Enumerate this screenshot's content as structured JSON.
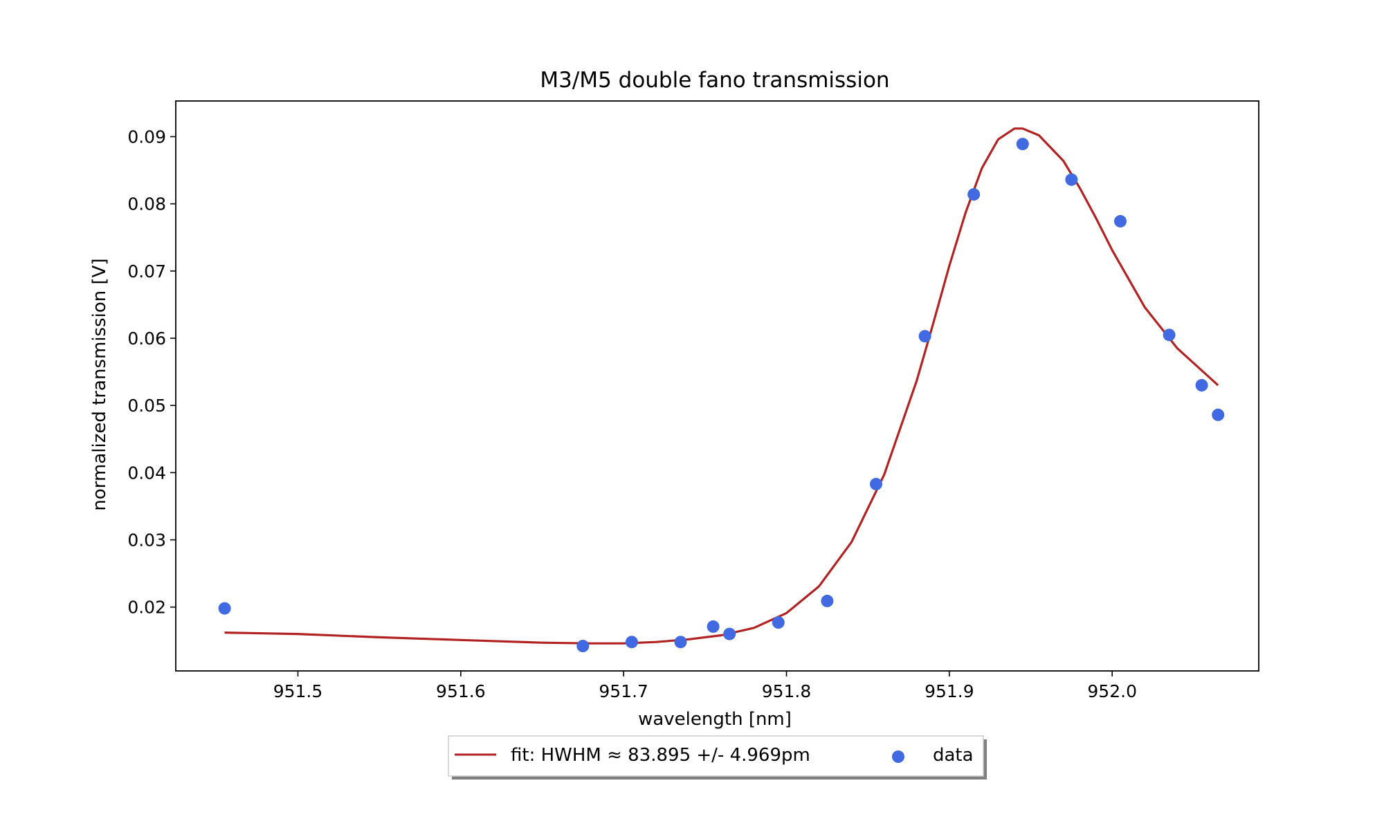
{
  "chart_data": {
    "type": "scatter",
    "title": "M3/M5 double fano transmission",
    "xlabel": "wavelength [nm]",
    "ylabel": "normalized transmission [V]",
    "xlim": [
      951.425,
      952.09
    ],
    "ylim": [
      0.0105,
      0.0953
    ],
    "x_ticks": [
      951.5,
      951.6,
      951.7,
      951.8,
      951.9,
      952.0
    ],
    "x_tick_labels": [
      "951.5",
      "951.6",
      "951.7",
      "951.8",
      "951.9",
      "952.0"
    ],
    "y_ticks": [
      0.02,
      0.03,
      0.04,
      0.05,
      0.06,
      0.07,
      0.08,
      0.09
    ],
    "y_tick_labels": [
      "0.02",
      "0.03",
      "0.04",
      "0.05",
      "0.06",
      "0.07",
      "0.08",
      "0.09"
    ],
    "grid": false,
    "legend_position": "bottom-center-outside",
    "series": [
      {
        "name": "fit: HWHM ≈ 83.895 +/- 4.969pm",
        "kind": "line",
        "color": "#b22222",
        "x": [
          951.455,
          951.5,
          951.55,
          951.6,
          951.65,
          951.68,
          951.7,
          951.72,
          951.74,
          951.76,
          951.78,
          951.8,
          951.82,
          951.84,
          951.86,
          951.88,
          951.89,
          951.9,
          951.91,
          951.92,
          951.93,
          951.94,
          951.945,
          951.955,
          951.97,
          951.98,
          951.99,
          952.0,
          952.02,
          952.04,
          952.065
        ],
        "y": [
          0.0162,
          0.016,
          0.0155,
          0.0151,
          0.0147,
          0.0146,
          0.0146,
          0.0148,
          0.0152,
          0.0158,
          0.0169,
          0.0191,
          0.0231,
          0.0297,
          0.0397,
          0.0537,
          0.0621,
          0.0708,
          0.0787,
          0.0853,
          0.0896,
          0.0912,
          0.0912,
          0.0902,
          0.0864,
          0.0824,
          0.0779,
          0.0731,
          0.0646,
          0.0585,
          0.053
        ]
      },
      {
        "name": "data",
        "kind": "scatter",
        "color": "#4169e1",
        "x": [
          951.455,
          951.675,
          951.705,
          951.735,
          951.755,
          951.765,
          951.795,
          951.825,
          951.855,
          951.885,
          951.915,
          951.945,
          951.975,
          952.005,
          952.035,
          952.055,
          952.065
        ],
        "y": [
          0.0198,
          0.0142,
          0.0148,
          0.0148,
          0.0171,
          0.016,
          0.0177,
          0.0209,
          0.0383,
          0.0603,
          0.0814,
          0.0889,
          0.0836,
          0.0774,
          0.0605,
          0.053,
          0.0486
        ]
      }
    ]
  }
}
